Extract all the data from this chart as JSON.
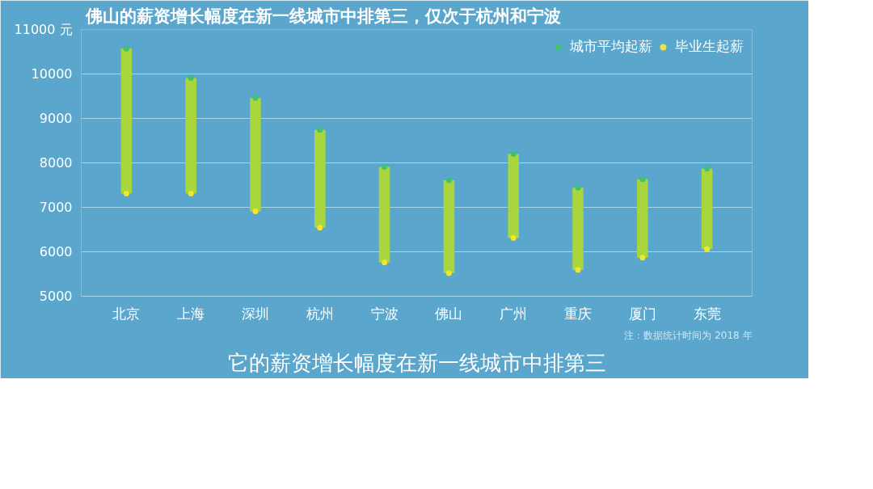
{
  "chart_data": {
    "type": "bar",
    "title": "佛山的薪资增长幅度在新一线城市中排第三，仅次于杭州和宁波",
    "categories": [
      "北京",
      "上海",
      "深圳",
      "杭州",
      "宁波",
      "佛山",
      "广州",
      "重庆",
      "厦门",
      "东莞"
    ],
    "series": [
      {
        "color": "#a8d63c",
        "base": [
          7310,
          7310,
          6910,
          6540,
          5760,
          5520,
          6310,
          5590,
          5870,
          6060
        ],
        "values": [
          3260,
          2600,
          2550,
          2200,
          2150,
          2090,
          1890,
          1850,
          1760,
          1810
        ]
      },
      {
        "type": "scatter",
        "name": "城市平均起薪",
        "color": "#3ec46d",
        "values": [
          10570,
          9910,
          9460,
          8740,
          7910,
          7610,
          8200,
          7440,
          7630,
          7870
        ]
      },
      {
        "type": "scatter",
        "name": "毕业生起薪",
        "color": "#f2e62a",
        "values": [
          7310,
          7310,
          6910,
          6540,
          5760,
          5520,
          6310,
          5590,
          5870,
          6060
        ]
      }
    ],
    "ylim": [
      5000,
      11000
    ],
    "yticks": [
      5000,
      6000,
      7000,
      8000,
      9000,
      10000,
      {
        "value": 11000,
        "label": "11000 元"
      }
    ],
    "grid": "y",
    "legend": "top right",
    "marker": "circle",
    "annotations": [
      "注：数据统计时间为 2018 年",
      "它的薪资增长幅度在新一线城市中排第三"
    ]
  }
}
